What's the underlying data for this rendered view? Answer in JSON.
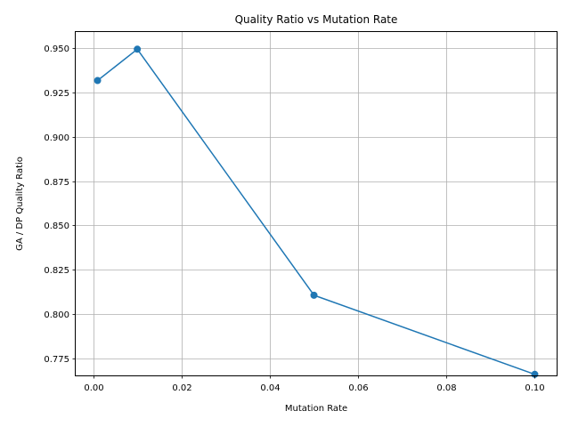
{
  "chart_data": {
    "type": "line",
    "title": "Quality Ratio vs Mutation Rate",
    "xlabel": "Mutation Rate",
    "ylabel": "GA / DP Quality Ratio",
    "xlim": [
      -0.00395,
      0.10495
    ],
    "ylim": [
      0.7652,
      0.9592
    ],
    "x_ticks": [
      0.0,
      0.02,
      0.04,
      0.06,
      0.08,
      0.1
    ],
    "x_tick_labels": [
      "0.00",
      "0.02",
      "0.04",
      "0.06",
      "0.08",
      "0.10"
    ],
    "y_ticks": [
      0.775,
      0.8,
      0.825,
      0.85,
      0.875,
      0.9,
      0.925,
      0.95
    ],
    "y_tick_labels": [
      "0.775",
      "0.800",
      "0.825",
      "0.850",
      "0.875",
      "0.900",
      "0.925",
      "0.950"
    ],
    "grid": true,
    "series": [
      {
        "x": [
          0.001,
          0.01,
          0.05,
          0.1
        ],
        "y": [
          0.9318,
          0.9495,
          0.8105,
          0.7658
        ],
        "color": "#1f77b4",
        "marker": "circle"
      }
    ]
  }
}
